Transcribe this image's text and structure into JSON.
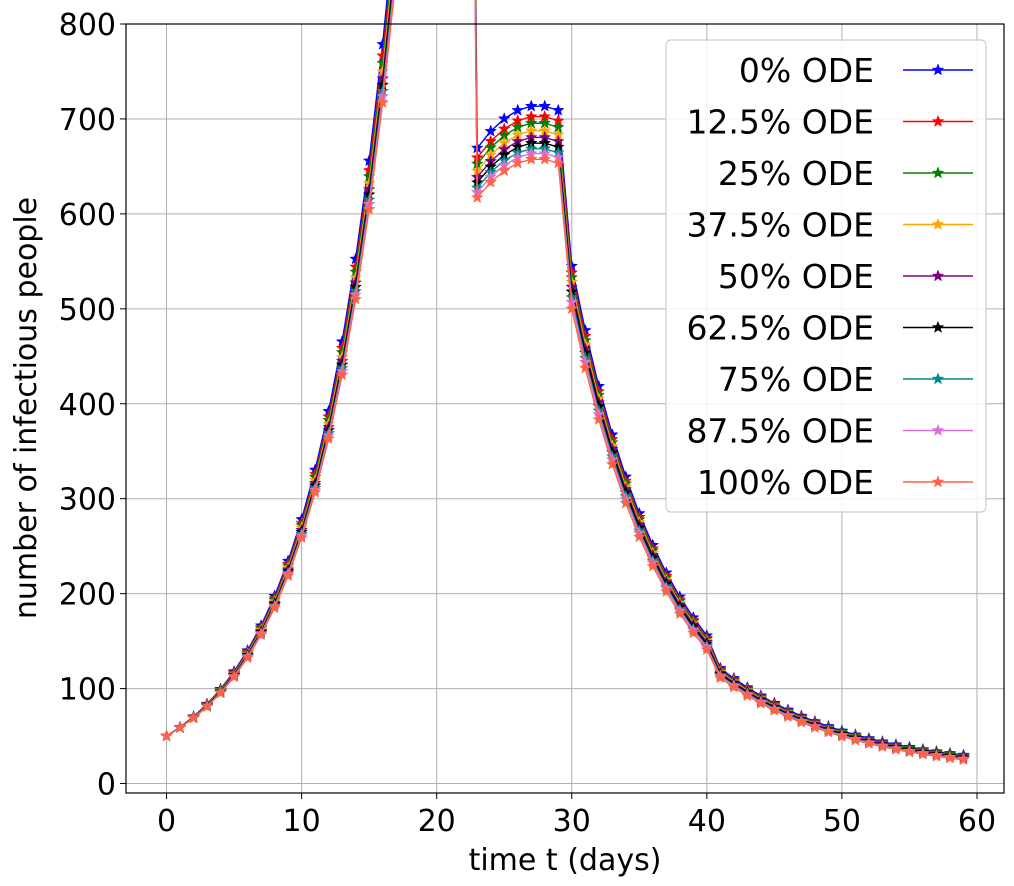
{
  "chart_data": {
    "type": "line",
    "title": "",
    "xlabel": "time t (days)",
    "ylabel": "number of infectious people",
    "xlim": [
      -3,
      62
    ],
    "ylim": [
      -10,
      800
    ],
    "xticks": [
      0,
      10,
      20,
      30,
      40,
      50,
      60
    ],
    "yticks": [
      0,
      100,
      200,
      300,
      400,
      500,
      600,
      700,
      800
    ],
    "grid": true,
    "legend_position": "top-right",
    "marker": "star",
    "x": [
      0,
      1,
      2,
      3,
      4,
      5,
      6,
      7,
      8,
      9,
      10,
      11,
      12,
      13,
      14,
      15,
      16,
      17,
      18,
      19,
      20,
      21,
      22,
      23,
      24,
      25,
      26,
      27,
      28,
      29,
      30,
      31,
      32,
      33,
      34,
      35,
      36,
      37,
      38,
      39,
      40,
      41,
      42,
      43,
      44,
      45,
      46,
      47,
      48,
      49,
      50,
      51,
      52,
      53,
      54,
      55,
      56,
      57,
      58,
      59
    ],
    "series": [
      {
        "name": "0% ODE",
        "color": "#0000ff",
        "peak": 714,
        "post30": 545,
        "end": 30
      },
      {
        "name": "12.5% ODE",
        "color": "#ff0000",
        "peak": 703,
        "post30": 538,
        "end": 29
      },
      {
        "name": "25% ODE",
        "color": "#008000",
        "peak": 696,
        "post30": 533,
        "end": 29
      },
      {
        "name": "37.5% ODE",
        "color": "#ffa500",
        "peak": 688,
        "post30": 528,
        "end": 28
      },
      {
        "name": "50% ODE",
        "color": "#800080",
        "peak": 681,
        "post30": 523,
        "end": 28
      },
      {
        "name": "62.5% ODE",
        "color": "#000000",
        "peak": 675,
        "post30": 518,
        "end": 27
      },
      {
        "name": "75% ODE",
        "color": "#008b8b",
        "peak": 669,
        "post30": 512,
        "end": 26
      },
      {
        "name": "87.5% ODE",
        "color": "#da70d6",
        "peak": 664,
        "post30": 507,
        "end": 26
      },
      {
        "name": "100% ODE",
        "color": "#ff6347",
        "peak": 658,
        "post30": 500,
        "end": 25
      }
    ]
  }
}
